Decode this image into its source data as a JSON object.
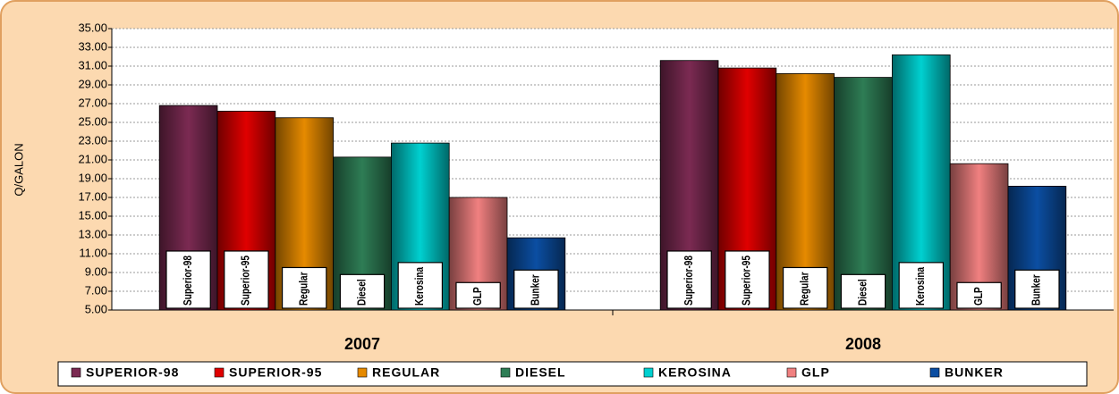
{
  "chart_data": {
    "type": "bar",
    "y_label": "Q/GALON",
    "categories": [
      "2007",
      "2008"
    ],
    "series": [
      {
        "name": "SUPERIOR-98",
        "label": "Superior-98",
        "color": "#7b2a52",
        "values": [
          26.8,
          31.6
        ]
      },
      {
        "name": "SUPERIOR-95",
        "label": "Superior-95",
        "color": "#e00000",
        "values": [
          26.2,
          30.8
        ]
      },
      {
        "name": "REGULAR",
        "label": "Regular",
        "color": "#e68a00",
        "values": [
          25.5,
          30.2
        ]
      },
      {
        "name": "DIESEL",
        "label": "Diesel",
        "color": "#2e7d55",
        "values": [
          21.3,
          29.8
        ]
      },
      {
        "name": "KEROSINA",
        "label": "Kerosina",
        "color": "#00d0d0",
        "values": [
          22.8,
          32.2
        ]
      },
      {
        "name": "GLP",
        "label": "GLP",
        "color": "#f08080",
        "values": [
          17.0,
          20.6
        ]
      },
      {
        "name": "BUNKER",
        "label": "Bunker",
        "color": "#0b4ea2",
        "values": [
          12.7,
          18.2
        ]
      }
    ],
    "ylim": [
      5,
      35
    ],
    "yticks": [
      {
        "value": 5,
        "label": "5.00"
      },
      {
        "value": 7,
        "label": "7.00"
      },
      {
        "value": 9,
        "label": "9.00"
      },
      {
        "value": 11,
        "label": "11.00"
      },
      {
        "value": 13,
        "label": "13.00"
      },
      {
        "value": 15,
        "label": "15.00"
      },
      {
        "value": 17,
        "label": "17.00"
      },
      {
        "value": 19,
        "label": "19.00"
      },
      {
        "value": 21,
        "label": "21.00"
      },
      {
        "value": 23,
        "label": "23.00"
      },
      {
        "value": 25,
        "label": "25.00"
      },
      {
        "value": 27,
        "label": "27.00"
      },
      {
        "value": 29,
        "label": "29.00"
      },
      {
        "value": 31,
        "label": "31.00"
      },
      {
        "value": 33,
        "label": "33.00"
      },
      {
        "value": 35,
        "label": "35.00"
      }
    ],
    "grid": true
  }
}
